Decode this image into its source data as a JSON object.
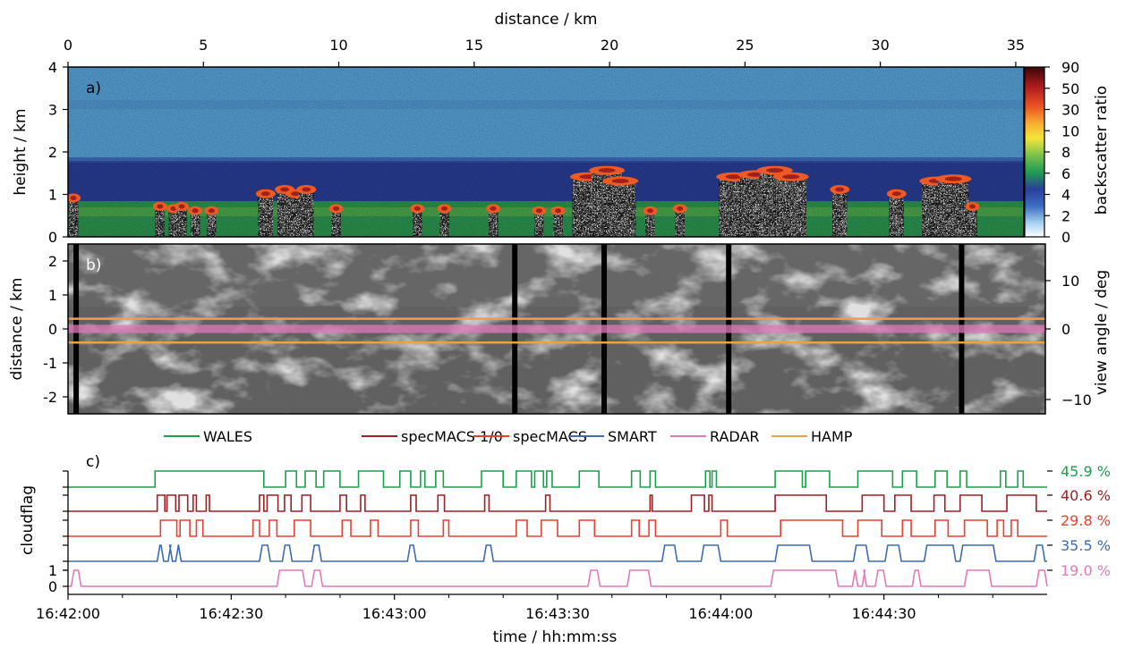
{
  "figure": {
    "top_axis_label": "distance / km",
    "bottom_axis_label": "time / hh:mm:ss"
  },
  "panel_a": {
    "tag": "a)",
    "ylabel": "height / km",
    "colorbar_label": "backscatter ratio"
  },
  "panel_b": {
    "tag": "b)",
    "ylabel": "distance / km",
    "ylabel_right": "view angle / deg"
  },
  "panel_c": {
    "tag": "c)",
    "ylabel": "cloudflag"
  },
  "colors": {
    "WALES": "#1aa04a",
    "specMACS 1/0": "#a01f23",
    "specMACS": "#e8402f",
    "SMART": "#3c6bb3",
    "RADAR": "#e07ab8",
    "HAMP": "#e8a24a"
  },
  "chart_data": [
    {
      "type": "heatmap",
      "panel": "a",
      "x_axis": {
        "label": "distance / km",
        "range": [
          0,
          35.3
        ],
        "ticks": [
          0,
          5,
          10,
          15,
          20,
          25,
          30,
          35
        ]
      },
      "y_axis": {
        "label": "height / km",
        "range": [
          0,
          4
        ],
        "ticks": [
          0,
          1,
          2,
          3,
          4
        ]
      },
      "colorbar": {
        "label": "backscatter ratio",
        "ticks": [
          "0",
          "2",
          "4",
          "6",
          "8",
          "10",
          "30",
          "50",
          "90"
        ]
      },
      "layers": [
        {
          "top_km": 1.7,
          "description_color": "#2a3f9a"
        },
        {
          "top_km": 0.85,
          "description_color": "#3aaa55"
        },
        {
          "top_km": 4,
          "description_color": "#5aa8e0"
        }
      ],
      "cloud_tops": [
        {
          "x": 0.2,
          "h": 1.0
        },
        {
          "x": 3.4,
          "h": 0.8
        },
        {
          "x": 3.9,
          "h": 0.75
        },
        {
          "x": 4.2,
          "h": 0.8
        },
        {
          "x": 4.7,
          "h": 0.7
        },
        {
          "x": 5.3,
          "h": 0.7
        },
        {
          "x": 7.3,
          "h": 1.1
        },
        {
          "x": 8.0,
          "h": 1.2
        },
        {
          "x": 8.4,
          "h": 1.1
        },
        {
          "x": 8.8,
          "h": 1.2
        },
        {
          "x": 9.9,
          "h": 0.75
        },
        {
          "x": 12.9,
          "h": 0.75
        },
        {
          "x": 13.9,
          "h": 0.75
        },
        {
          "x": 15.7,
          "h": 0.75
        },
        {
          "x": 17.4,
          "h": 0.7
        },
        {
          "x": 18.1,
          "h": 0.7
        },
        {
          "x": 19.2,
          "h": 1.5
        },
        {
          "x": 19.9,
          "h": 1.65
        },
        {
          "x": 20.4,
          "h": 1.4
        },
        {
          "x": 21.5,
          "h": 0.7
        },
        {
          "x": 22.6,
          "h": 0.75
        },
        {
          "x": 24.6,
          "h": 1.5
        },
        {
          "x": 25.4,
          "h": 1.55
        },
        {
          "x": 26.1,
          "h": 1.65
        },
        {
          "x": 26.7,
          "h": 1.5
        },
        {
          "x": 28.5,
          "h": 1.2
        },
        {
          "x": 30.6,
          "h": 1.1
        },
        {
          "x": 32.1,
          "h": 1.4
        },
        {
          "x": 32.7,
          "h": 1.45
        },
        {
          "x": 33.4,
          "h": 0.8
        }
      ]
    },
    {
      "type": "heatmap",
      "panel": "b",
      "y_axis": {
        "label": "distance / km",
        "range": [
          -2.5,
          2.5
        ],
        "ticks": [
          -2,
          -1,
          0,
          1,
          2
        ]
      },
      "y_axis_right": {
        "label": "view angle / deg",
        "ticks": [
          "-10",
          "0",
          "10"
        ]
      },
      "hamp_band": [
        -0.4,
        0.3
      ],
      "radar_band": [
        -0.12,
        0.12
      ]
    },
    {
      "type": "line",
      "panel": "c",
      "x_axis": {
        "label": "time / hh:mm:ss",
        "ticks": [
          "16:42:00",
          "16:42:30",
          "16:43:00",
          "16:43:30",
          "16:44:00",
          "16:44:30"
        ]
      },
      "y_axis": {
        "label": "cloudflag",
        "ticks": [
          "0",
          "1"
        ]
      },
      "legend": {
        "placement": "top",
        "entries": [
          "WALES",
          "specMACS 1/0",
          "specMACS",
          "SMART",
          "RADAR",
          "HAMP"
        ]
      },
      "series": [
        {
          "name": "WALES",
          "percent": "45.9 %",
          "segments": [
            [
              8,
              18
            ],
            [
              20,
              21
            ],
            [
              21.8,
              22.8
            ],
            [
              23.5,
              25
            ],
            [
              26.7,
              29
            ],
            [
              30.5,
              31.5
            ],
            [
              32.4,
              32.8
            ],
            [
              33.8,
              34.5
            ],
            [
              38,
              40
            ],
            [
              41.2,
              42.6
            ],
            [
              42.9,
              43.7
            ],
            [
              44,
              44.5
            ],
            [
              47,
              48.8
            ],
            [
              51.8,
              52.6
            ],
            [
              53.5,
              54
            ],
            [
              58.6,
              59
            ],
            [
              59.2,
              59.6
            ],
            [
              65,
              67.5
            ],
            [
              67.8,
              70
            ],
            [
              72.6,
              75.8
            ],
            [
              76.7,
              78
            ],
            [
              79.7,
              80.8
            ],
            [
              82,
              82.6
            ],
            [
              85.7,
              86.2
            ],
            [
              87.3,
              87.8
            ]
          ]
        },
        {
          "name": "specMACS 1/0",
          "percent": "40.6 %",
          "segments": [
            [
              8.2,
              8.9
            ],
            [
              9.1,
              9.9
            ],
            [
              10.2,
              11
            ],
            [
              11.5,
              11.8
            ],
            [
              12.7,
              13
            ],
            [
              17.6,
              18
            ],
            [
              18.3,
              19.3
            ],
            [
              19.9,
              20.5
            ],
            [
              21.5,
              22.3
            ],
            [
              25,
              25.6
            ],
            [
              26.9,
              27.3
            ],
            [
              31.5,
              32
            ],
            [
              34,
              34.6
            ],
            [
              38.3,
              38.7
            ],
            [
              43.9,
              44.3
            ],
            [
              53.5,
              53.7
            ],
            [
              57.3,
              58.5
            ],
            [
              58.9,
              59.2
            ],
            [
              65,
              69.7
            ],
            [
              73,
              75
            ],
            [
              76,
              77.5
            ],
            [
              79.6,
              80.6
            ],
            [
              82,
              84
            ],
            [
              86.3,
              89
            ]
          ]
        },
        {
          "name": "specMACS",
          "percent": "29.8 %",
          "segments": [
            [
              8.5,
              10
            ],
            [
              10.3,
              11.2
            ],
            [
              11.8,
              12.4
            ],
            [
              17,
              17.6
            ],
            [
              18.5,
              19.2
            ],
            [
              20.8,
              22.3
            ],
            [
              25.2,
              26
            ],
            [
              27.8,
              28.5
            ],
            [
              31.5,
              32.2
            ],
            [
              34.5,
              35
            ],
            [
              41.2,
              42.2
            ],
            [
              43.5,
              45
            ],
            [
              47,
              48.4
            ],
            [
              51.8,
              52.5
            ],
            [
              53.4,
              54
            ],
            [
              60,
              60.6
            ],
            [
              65.5,
              71.2
            ],
            [
              72.6,
              74.8
            ],
            [
              76.7,
              77.5
            ],
            [
              79.7,
              80.9
            ],
            [
              82.4,
              84.5
            ],
            [
              85.4,
              86
            ],
            [
              86.7,
              87.3
            ]
          ]
        },
        {
          "name": "SMART",
          "percent": "35.5 %",
          "segments": [
            [
              8.2,
              8.8
            ],
            [
              9.2,
              9.6
            ],
            [
              9.9,
              10.4
            ],
            [
              17.6,
              18.6
            ],
            [
              19.7,
              20.6
            ],
            [
              22.4,
              23.3
            ],
            [
              31.2,
              32
            ],
            [
              38.2,
              39.1
            ],
            [
              54.6,
              56
            ],
            [
              58.2,
              60
            ],
            [
              65,
              68.4
            ],
            [
              72.2,
              73.6
            ],
            [
              75.1,
              76.6
            ],
            [
              78.7,
              81.6
            ],
            [
              82,
              85.3
            ],
            [
              88.8,
              89.8
            ]
          ]
        },
        {
          "name": "RADAR",
          "percent": "19.0 %",
          "segments": [
            [
              0.3,
              1.2
            ],
            [
              19.2,
              21.8
            ],
            [
              22.4,
              23.4
            ],
            [
              47.8,
              48.9
            ],
            [
              51.4,
              53.6
            ],
            [
              64.6,
              70.8
            ],
            [
              72.1,
              72.6
            ],
            [
              73,
              73.4
            ],
            [
              74.2,
              75.2
            ],
            [
              77.6,
              78.4
            ],
            [
              82.4,
              84.9
            ],
            [
              89,
              90
            ]
          ]
        }
      ]
    }
  ]
}
